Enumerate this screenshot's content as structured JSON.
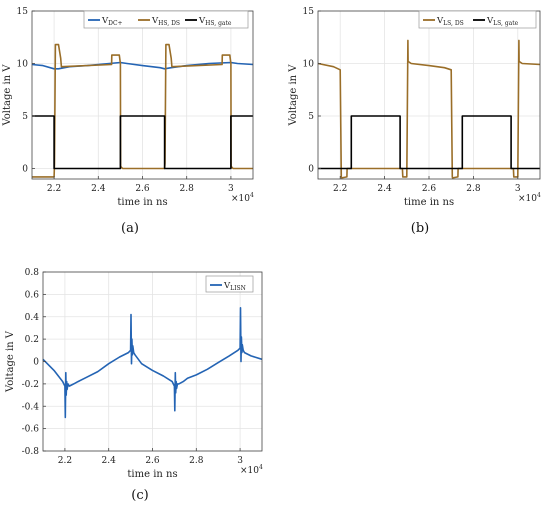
{
  "captions": [
    "(a)",
    "(b)",
    "(c)"
  ],
  "colors": {
    "blue": "#2464b4",
    "brown": "#9a6e28",
    "black": "#000000"
  },
  "chart_data": [
    {
      "id": "a",
      "type": "line",
      "xlabel": "time in ns",
      "ylabel": "Voltage in V",
      "x_scale_label": "×10",
      "x_scale_exp": "4",
      "xlim": [
        21000,
        31000
      ],
      "ylim": [
        -1,
        15
      ],
      "xticks": [
        "2.2",
        "2.4",
        "2.6",
        "2.8",
        "3"
      ],
      "xtick_values": [
        22000,
        24000,
        26000,
        28000,
        30000
      ],
      "yticks": [
        "0",
        "5",
        "10",
        "15"
      ],
      "ytick_values": [
        0,
        5,
        10,
        15
      ],
      "grid": true,
      "legend": "top-right-horizontal",
      "series": [
        {
          "name": "V",
          "sub": "DC+",
          "color": "#2464b4",
          "x": [
            21000,
            21500,
            22000,
            22200,
            22700,
            23500,
            24500,
            25000,
            25300,
            26000,
            26800,
            27000,
            27300,
            28000,
            29000,
            30000,
            30300,
            31000
          ],
          "y": [
            9.9,
            9.8,
            9.5,
            9.5,
            9.7,
            9.8,
            10,
            10.1,
            10,
            9.8,
            9.6,
            9.5,
            9.6,
            9.8,
            10,
            10.1,
            10,
            9.9
          ]
        },
        {
          "name": "V",
          "sub": "HS, DS",
          "color": "#9a6e28",
          "x": [
            21000,
            22000,
            22020,
            22050,
            22060,
            22200,
            22300,
            22330,
            24600,
            24610,
            24950,
            25000,
            25010,
            25100,
            27000,
            27020,
            27050,
            27060,
            27200,
            27300,
            27330,
            29600,
            29610,
            29950,
            30000,
            30010,
            30100,
            31000
          ],
          "y": [
            -0.8,
            -0.8,
            0.5,
            9.5,
            11.8,
            11.8,
            10.5,
            9.7,
            9.9,
            10.8,
            10.8,
            10,
            0.2,
            0,
            0,
            0.5,
            9.5,
            11.8,
            11.8,
            10.5,
            9.7,
            9.9,
            10.8,
            10.8,
            10,
            0.2,
            0,
            0
          ]
        },
        {
          "name": "V",
          "sub": "HS, gate",
          "color": "#000000",
          "x": [
            21000,
            22000,
            22000,
            25000,
            25000,
            27000,
            27000,
            30000,
            30000,
            31000
          ],
          "y": [
            5,
            5,
            0,
            0,
            5,
            5,
            0,
            0,
            5,
            5
          ]
        }
      ]
    },
    {
      "id": "b",
      "type": "line",
      "xlabel": "time in ns",
      "ylabel": "Voltage in V",
      "x_scale_label": "×10",
      "x_scale_exp": "4",
      "xlim": [
        21000,
        31000
      ],
      "ylim": [
        -1,
        15
      ],
      "xticks": [
        "2.2",
        "2.4",
        "2.6",
        "2.8",
        "3"
      ],
      "xtick_values": [
        22000,
        24000,
        26000,
        28000,
        30000
      ],
      "yticks": [
        "0",
        "5",
        "10",
        "15"
      ],
      "ytick_values": [
        0,
        5,
        10,
        15
      ],
      "grid": true,
      "legend": "top-right-horizontal",
      "series": [
        {
          "name": "V",
          "sub": "LS, DS",
          "color": "#9a6e28",
          "x": [
            21000,
            21700,
            22000,
            22050,
            22060,
            22300,
            22310,
            24800,
            24820,
            25000,
            25050,
            25060,
            25200,
            26000,
            26700,
            27000,
            27050,
            27060,
            27300,
            27310,
            29800,
            29820,
            30000,
            30050,
            30060,
            30200,
            31000
          ],
          "y": [
            10,
            9.7,
            9.4,
            -0.8,
            -0.9,
            -0.8,
            0,
            0,
            -0.8,
            -0.8,
            12.2,
            10.2,
            10,
            9.8,
            9.6,
            9.4,
            -0.8,
            -0.9,
            -0.8,
            0,
            0,
            -0.8,
            -0.8,
            12.2,
            10.2,
            10,
            9.9
          ]
        },
        {
          "name": "V",
          "sub": "LS, gate",
          "color": "#000000",
          "x": [
            21000,
            22500,
            22500,
            24700,
            24700,
            27500,
            27500,
            29700,
            29700,
            31000
          ],
          "y": [
            0,
            0,
            5,
            5,
            0,
            0,
            5,
            5,
            0,
            0
          ]
        }
      ]
    },
    {
      "id": "c",
      "type": "line",
      "xlabel": "time in ns",
      "ylabel": "Voltage in V",
      "x_scale_label": "×10",
      "x_scale_exp": "4",
      "xlim": [
        21000,
        31000
      ],
      "ylim": [
        -0.8,
        0.8
      ],
      "xticks": [
        "2.2",
        "2.4",
        "2.6",
        "2.8",
        "3"
      ],
      "xtick_values": [
        22000,
        24000,
        26000,
        28000,
        30000
      ],
      "yticks": [
        "-0.8",
        "-0.6",
        "-0.4",
        "-0.2",
        "0",
        "0.2",
        "0.4",
        "0.6",
        "0.8"
      ],
      "ytick_values": [
        -0.8,
        -0.6,
        -0.4,
        -0.2,
        0,
        0.2,
        0.4,
        0.6,
        0.8
      ],
      "grid": true,
      "legend": "top-right",
      "series": [
        {
          "name": "V",
          "sub": "LISN",
          "color": "#2464b4",
          "x": [
            21000,
            21500,
            21900,
            22000,
            22020,
            22040,
            22060,
            22080,
            22100,
            22140,
            22200,
            22400,
            22600,
            23000,
            23500,
            24000,
            24500,
            24900,
            25000,
            25020,
            25040,
            25060,
            25080,
            25100,
            25140,
            25200,
            25500,
            26000,
            26500,
            26900,
            27000,
            27020,
            27040,
            27060,
            27080,
            27100,
            27140,
            27200,
            27400,
            27600,
            28000,
            28500,
            29000,
            29500,
            29900,
            30000,
            30020,
            30040,
            30060,
            30080,
            30100,
            30140,
            30200,
            30500,
            31000
          ],
          "y": [
            0.02,
            -0.08,
            -0.18,
            -0.22,
            -0.5,
            -0.1,
            -0.3,
            -0.18,
            -0.25,
            -0.2,
            -0.22,
            -0.2,
            -0.18,
            -0.14,
            -0.09,
            -0.02,
            0.04,
            0.08,
            0.1,
            0.42,
            -0.02,
            0.2,
            0.06,
            0.14,
            0.08,
            0.06,
            -0.02,
            -0.08,
            -0.13,
            -0.18,
            -0.22,
            -0.44,
            -0.1,
            -0.28,
            -0.18,
            -0.24,
            -0.2,
            -0.2,
            -0.18,
            -0.15,
            -0.12,
            -0.07,
            -0.01,
            0.05,
            0.1,
            0.12,
            0.48,
            0.0,
            0.22,
            0.08,
            0.15,
            0.1,
            0.08,
            0.05,
            0.02
          ]
        }
      ]
    }
  ]
}
